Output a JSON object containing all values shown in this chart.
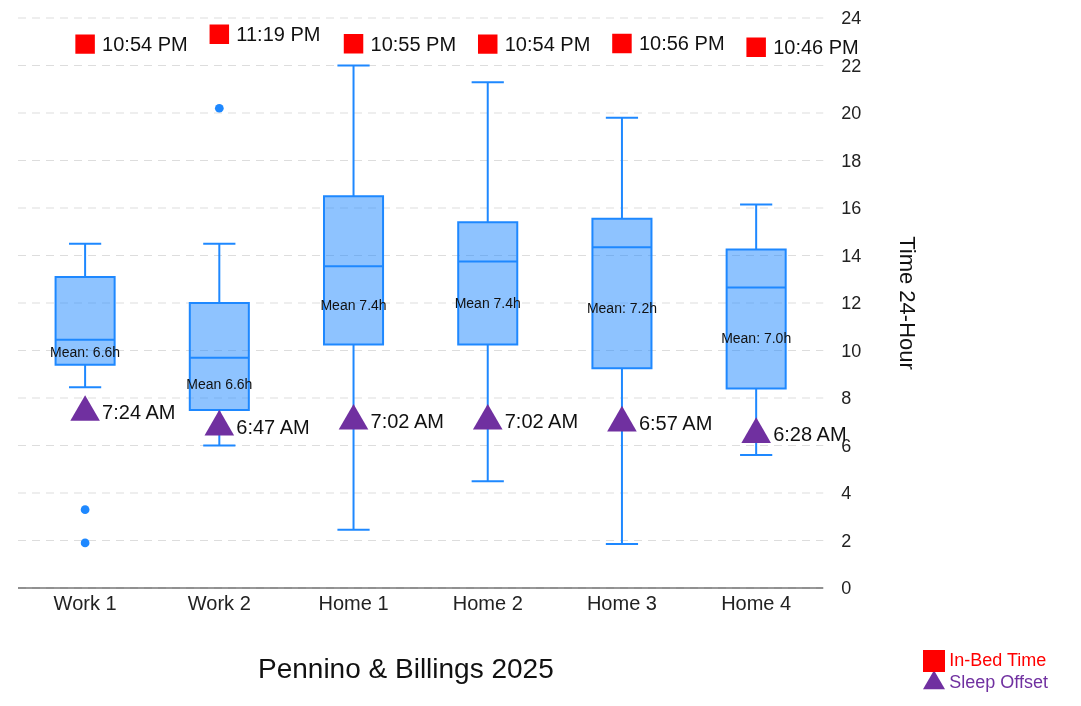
{
  "chart_data": {
    "type": "box",
    "categories": [
      "Work 1",
      "Work 2",
      "Home 1",
      "Home 2",
      "Home 3",
      "Home 4"
    ],
    "ylabel": "Time 24-Hour",
    "ylim": [
      0,
      24
    ],
    "yticks": [
      0,
      2,
      4,
      6,
      8,
      10,
      12,
      14,
      16,
      18,
      20,
      22,
      24
    ],
    "grid": "y",
    "legend": "bottom right",
    "series": [
      {
        "color": "#1e88ff",
        "boxes": [
          {
            "low": 8.45,
            "q1": 9.4,
            "median": 10.45,
            "q3": 13.1,
            "high": 14.5,
            "outliers": [
              3.3,
              1.9
            ]
          },
          {
            "low": 6.0,
            "q1": 7.5,
            "median": 9.7,
            "q3": 12.0,
            "high": 14.5,
            "outliers": [
              20.2
            ]
          },
          {
            "low": 2.45,
            "q1": 10.25,
            "median": 13.55,
            "q3": 16.5,
            "high": 22.0
          },
          {
            "low": 4.5,
            "q1": 10.25,
            "median": 13.75,
            "q3": 15.4,
            "high": 21.3
          },
          {
            "low": 1.85,
            "q1": 9.25,
            "median": 14.35,
            "q3": 15.55,
            "high": 19.8
          },
          {
            "low": 5.6,
            "q1": 8.4,
            "median": 12.65,
            "q3": 14.25,
            "high": 16.15
          }
        ]
      },
      {
        "name": "In-Bed Time",
        "type": "scatter",
        "marker": "square",
        "color": "#ff0000",
        "x": [
          "Work 1",
          "Work 2",
          "Home 1",
          "Home 2",
          "Home 3",
          "Home 4"
        ],
        "values": [
          22.9,
          23.32,
          22.92,
          22.9,
          22.93,
          22.77
        ],
        "value_labels": [
          "10:54 PM",
          "11:19 PM",
          "10:55 PM",
          "10:54 PM",
          "10:56 PM",
          "10:46 PM"
        ]
      },
      {
        "name": "Sleep Offset",
        "type": "scatter",
        "marker": "triangle",
        "color": "#7030a0",
        "x": [
          "Work 1",
          "Work 2",
          "Home 1",
          "Home 2",
          "Home 3",
          "Home 4"
        ],
        "values": [
          7.4,
          6.78,
          7.03,
          7.03,
          6.95,
          6.47
        ],
        "value_labels": [
          "7:24 AM",
          "6:47 AM",
          "7:02 AM",
          "7:02 AM",
          "6:57 AM",
          "6:28 AM"
        ]
      }
    ],
    "annotations": [
      "Mean: 6.6h",
      "Mean 6.6h",
      "Mean 7.4h",
      "Mean 7.4h",
      "Mean: 7.2h",
      "Mean: 7.0h",
      "Pennino & Billings 2025"
    ]
  }
}
